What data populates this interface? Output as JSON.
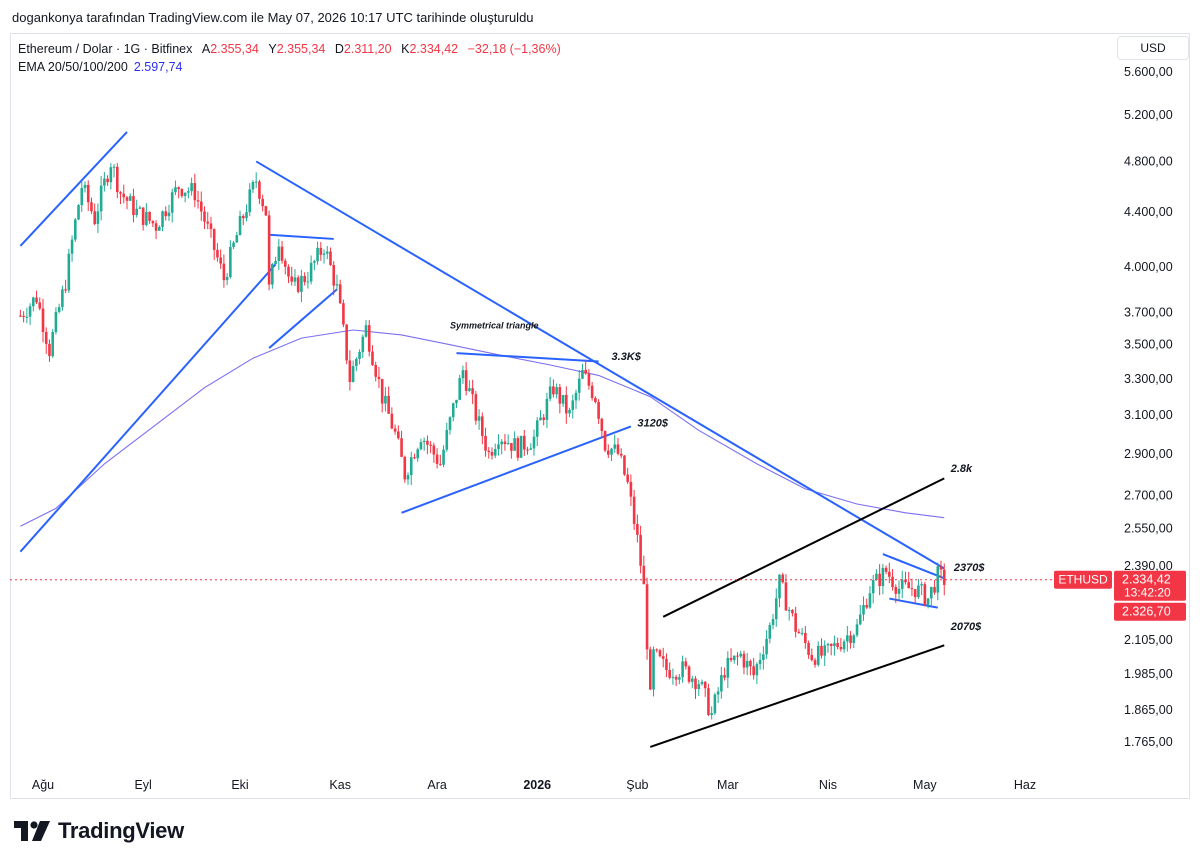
{
  "caption": "dogankonya tarafından TradingView.com ile May 07, 2026 10:17 UTC tarihinde oluşturuldu",
  "legend": {
    "symbol": "Ethereum / Dolar · 1G · Bitfinex",
    "open_label": "A",
    "open": "2.355,34",
    "high_label": "Y",
    "high": "2.355,34",
    "low_label": "D",
    "low": "2.311,20",
    "close_label": "K",
    "close": "2.334,42",
    "change": "−32,18 (−1,36%)",
    "ema_label": "EMA 20/50/100/200",
    "ema_value": "2.597,74"
  },
  "currency_button": "USD",
  "price_tag": {
    "ticker": "ETHUSD",
    "price": "2.334,42",
    "countdown": "13:42:20",
    "prev": "2.326,70"
  },
  "brand": "TradingView",
  "colors": {
    "up": "#22ab94",
    "down": "#f23645",
    "trend": "#2962ff",
    "ema": "#7b6ff2",
    "channel": "#000000"
  },
  "chart_data": {
    "type": "candlestick",
    "y_scale": "log",
    "y_ticks": [
      "5.600,00",
      "5.200,00",
      "4.800,00",
      "4.400,00",
      "4.000,00",
      "3.700,00",
      "3.500,00",
      "3.300,00",
      "3.100,00",
      "2.900,00",
      "2.700,00",
      "2.550,00",
      "2.390,00",
      "2.105,00",
      "1.985,00",
      "1.865,00",
      "1.765,00"
    ],
    "y_tick_values": [
      5600,
      5200,
      4800,
      4400,
      4000,
      3700,
      3500,
      3300,
      3100,
      2900,
      2700,
      2550,
      2390,
      2105,
      1985,
      1865,
      1765
    ],
    "x_ticks": [
      {
        "label": "Ağu",
        "date": "2025-08-01",
        "bold": false
      },
      {
        "label": "Eyl",
        "date": "2025-09-01",
        "bold": false
      },
      {
        "label": "Eki",
        "date": "2025-10-01",
        "bold": false
      },
      {
        "label": "Kas",
        "date": "2025-11-01",
        "bold": false
      },
      {
        "label": "Ara",
        "date": "2025-12-01",
        "bold": false
      },
      {
        "label": "2026",
        "date": "2026-01-01",
        "bold": true
      },
      {
        "label": "Şub",
        "date": "2026-02-01",
        "bold": false
      },
      {
        "label": "Mar",
        "date": "2026-03-01",
        "bold": false
      },
      {
        "label": "Nis",
        "date": "2026-04-01",
        "bold": false
      },
      {
        "label": "May",
        "date": "2026-05-01",
        "bold": false
      },
      {
        "label": "Haz",
        "date": "2026-06-01",
        "bold": false
      }
    ],
    "close_path": [
      [
        "2025-07-25",
        3680
      ],
      [
        "2025-07-30",
        3800
      ],
      [
        "2025-08-03",
        3470
      ],
      [
        "2025-08-08",
        3900
      ],
      [
        "2025-08-13",
        4600
      ],
      [
        "2025-08-17",
        4350
      ],
      [
        "2025-08-22",
        4800
      ],
      [
        "2025-08-25",
        4550
      ],
      [
        "2025-08-30",
        4400
      ],
      [
        "2025-09-05",
        4300
      ],
      [
        "2025-09-12",
        4600
      ],
      [
        "2025-09-17",
        4550
      ],
      [
        "2025-09-22",
        4200
      ],
      [
        "2025-09-26",
        3920
      ],
      [
        "2025-10-01",
        4300
      ],
      [
        "2025-10-06",
        4650
      ],
      [
        "2025-10-09",
        4400
      ],
      [
        "2025-10-10",
        3850
      ],
      [
        "2025-10-13",
        4200
      ],
      [
        "2025-10-17",
        3850
      ],
      [
        "2025-10-22",
        3950
      ],
      [
        "2025-10-27",
        4150
      ],
      [
        "2025-10-31",
        3850
      ],
      [
        "2025-11-04",
        3300
      ],
      [
        "2025-11-09",
        3600
      ],
      [
        "2025-11-14",
        3200
      ],
      [
        "2025-11-18",
        3000
      ],
      [
        "2025-11-21",
        2800
      ],
      [
        "2025-11-26",
        3000
      ],
      [
        "2025-12-02",
        2850
      ],
      [
        "2025-12-09",
        3350
      ],
      [
        "2025-12-13",
        3100
      ],
      [
        "2025-12-17",
        2900
      ],
      [
        "2025-12-20",
        3000
      ],
      [
        "2025-12-26",
        2930
      ],
      [
        "2025-12-31",
        2980
      ],
      [
        "2026-01-06",
        3250
      ],
      [
        "2026-01-11",
        3100
      ],
      [
        "2026-01-15",
        3330
      ],
      [
        "2026-01-19",
        3200
      ],
      [
        "2026-01-22",
        2950
      ],
      [
        "2026-01-26",
        2900
      ],
      [
        "2026-01-29",
        2750
      ],
      [
        "2026-02-01",
        2500
      ],
      [
        "2026-02-03",
        2300
      ],
      [
        "2026-02-05",
        1900
      ],
      [
        "2026-02-06",
        2050
      ],
      [
        "2026-02-10",
        2000
      ],
      [
        "2026-02-15",
        2000
      ],
      [
        "2026-02-20",
        1960
      ],
      [
        "2026-02-24",
        1850
      ],
      [
        "2026-02-28",
        2000
      ],
      [
        "2026-03-05",
        2050
      ],
      [
        "2026-03-09",
        1980
      ],
      [
        "2026-03-14",
        2150
      ],
      [
        "2026-03-17",
        2320
      ],
      [
        "2026-03-22",
        2150
      ],
      [
        "2026-03-27",
        2050
      ],
      [
        "2026-03-31",
        2050
      ],
      [
        "2026-04-05",
        2100
      ],
      [
        "2026-04-10",
        2150
      ],
      [
        "2026-04-14",
        2300
      ],
      [
        "2026-04-19",
        2370
      ],
      [
        "2026-04-23",
        2300
      ],
      [
        "2026-04-28",
        2300
      ],
      [
        "2026-05-02",
        2260
      ],
      [
        "2026-05-05",
        2350
      ],
      [
        "2026-05-07",
        2334
      ]
    ],
    "ema_path": [
      [
        "2025-07-25",
        2560
      ],
      [
        "2025-08-05",
        2640
      ],
      [
        "2025-08-20",
        2850
      ],
      [
        "2025-09-05",
        3050
      ],
      [
        "2025-09-20",
        3250
      ],
      [
        "2025-10-05",
        3420
      ],
      [
        "2025-10-20",
        3540
      ],
      [
        "2025-11-05",
        3590
      ],
      [
        "2025-11-20",
        3560
      ],
      [
        "2025-12-05",
        3500
      ],
      [
        "2025-12-20",
        3440
      ],
      [
        "2026-01-05",
        3380
      ],
      [
        "2026-01-20",
        3320
      ],
      [
        "2026-02-05",
        3200
      ],
      [
        "2026-02-20",
        3020
      ],
      [
        "2026-03-10",
        2850
      ],
      [
        "2026-03-25",
        2730
      ],
      [
        "2026-04-10",
        2660
      ],
      [
        "2026-04-25",
        2620
      ],
      [
        "2026-05-07",
        2598
      ]
    ],
    "trendlines": [
      {
        "color": "blue",
        "points": [
          [
            "2025-07-25",
            4150
          ],
          [
            "2025-08-27",
            5050
          ]
        ]
      },
      {
        "color": "blue",
        "points": [
          [
            "2025-07-25",
            2450
          ],
          [
            "2025-10-12",
            4020
          ]
        ]
      },
      {
        "color": "blue",
        "points": [
          [
            "2025-10-06",
            4800
          ],
          [
            "2026-05-07",
            2380
          ]
        ]
      },
      {
        "color": "blue",
        "points": [
          [
            "2025-10-10",
            4230
          ],
          [
            "2025-10-30",
            4200
          ]
        ]
      },
      {
        "color": "blue",
        "points": [
          [
            "2025-10-10",
            3480
          ],
          [
            "2025-10-31",
            3850
          ]
        ]
      },
      {
        "color": "blue",
        "points": [
          [
            "2025-12-07",
            3450
          ],
          [
            "2026-01-20",
            3400
          ]
        ]
      },
      {
        "color": "blue",
        "points": [
          [
            "2025-11-20",
            2620
          ],
          [
            "2026-01-30",
            3040
          ]
        ]
      },
      {
        "color": "blue",
        "points": [
          [
            "2026-04-18",
            2440
          ],
          [
            "2026-05-07",
            2340
          ]
        ]
      },
      {
        "color": "blue",
        "points": [
          [
            "2026-04-20",
            2260
          ],
          [
            "2026-05-05",
            2225
          ]
        ]
      },
      {
        "color": "black",
        "points": [
          [
            "2026-02-09",
            2190
          ],
          [
            "2026-05-07",
            2780
          ]
        ]
      },
      {
        "color": "black",
        "points": [
          [
            "2026-02-05",
            1750
          ],
          [
            "2026-05-07",
            2085
          ]
        ]
      }
    ],
    "annotations": [
      {
        "text": "Symmetrical triangle",
        "date": "2025-12-05",
        "price": 3600
      },
      {
        "text": "3.3K$",
        "date": "2026-01-24",
        "price": 3410
      },
      {
        "text": "3120$",
        "date": "2026-02-01",
        "price": 3040
      },
      {
        "text": "2.8k",
        "date": "2026-05-09",
        "price": 2810
      },
      {
        "text": "2370$",
        "date": "2026-05-10",
        "price": 2370
      },
      {
        "text": "2070$",
        "date": "2026-05-09",
        "price": 2140
      }
    ],
    "last_price": 2334.42
  }
}
